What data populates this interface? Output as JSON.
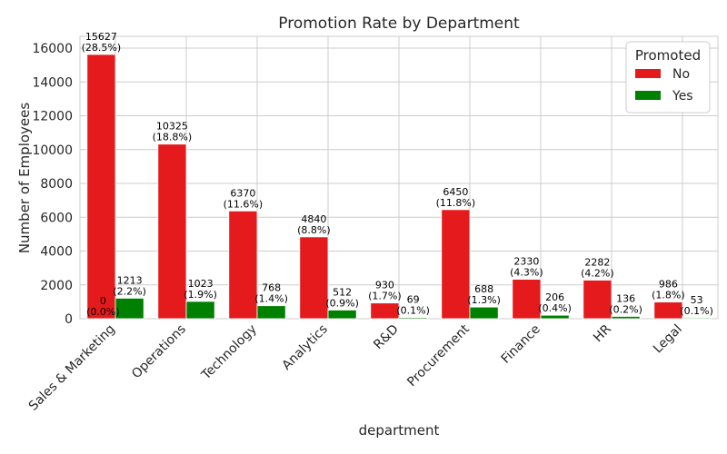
{
  "chart_data": {
    "type": "bar",
    "title": "Promotion Rate by Department",
    "xlabel": "department",
    "ylabel": "Number of Employees",
    "ylim": [
      0,
      16700
    ],
    "yticks": [
      0,
      2000,
      4000,
      6000,
      8000,
      10000,
      12000,
      14000,
      16000
    ],
    "grid": true,
    "legend": {
      "title": "Promoted",
      "placement": "top-right"
    },
    "categories": [
      "Sales & Marketing",
      "Operations",
      "Technology",
      "Analytics",
      "R&D",
      "Procurement",
      "Finance",
      "HR",
      "Legal"
    ],
    "series": [
      {
        "name": "No",
        "color": "#e41a1c",
        "values": [
          15627,
          10325,
          6370,
          4840,
          930,
          6450,
          2330,
          2282,
          986
        ],
        "labels": [
          "15627\n(28.5%)",
          "10325\n(18.8%)",
          "6370\n(11.6%)",
          "4840\n(8.8%)",
          "930\n(1.7%)",
          "6450\n(11.8%)",
          "2330\n(4.3%)",
          "2282\n(4.2%)",
          "986\n(1.8%)"
        ]
      },
      {
        "name": "Yes",
        "color": "#008000",
        "values": [
          1213,
          1023,
          768,
          512,
          69,
          688,
          206,
          136,
          53
        ],
        "labels": [
          "1213\n(2.2%)",
          "1023\n(1.9%)",
          "768\n(1.4%)",
          "512\n(0.9%)",
          "69\n(0.1%)",
          "688\n(1.3%)",
          "206\n(0.4%)",
          "136\n(0.2%)",
          "53\n(0.1%)"
        ]
      }
    ],
    "annotations": [
      {
        "category_index": 0,
        "value": 0,
        "label": "0\n(0.0%)"
      }
    ]
  }
}
